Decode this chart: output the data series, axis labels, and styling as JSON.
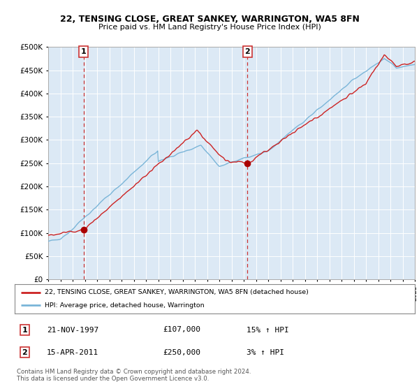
{
  "title": "22, TENSING CLOSE, GREAT SANKEY, WARRINGTON, WA5 8FN",
  "subtitle": "Price paid vs. HM Land Registry's House Price Index (HPI)",
  "legend_line1": "22, TENSING CLOSE, GREAT SANKEY, WARRINGTON, WA5 8FN (detached house)",
  "legend_line2": "HPI: Average price, detached house, Warrington",
  "sale1_date": "21-NOV-1997",
  "sale1_price": 107000,
  "sale1_hpi": "15% ↑ HPI",
  "sale2_date": "15-APR-2011",
  "sale2_price": 250000,
  "sale2_hpi": "3% ↑ HPI",
  "footer": "Contains HM Land Registry data © Crown copyright and database right 2024.\nThis data is licensed under the Open Government Licence v3.0.",
  "ylim": [
    0,
    500000
  ],
  "yticks": [
    0,
    50000,
    100000,
    150000,
    200000,
    250000,
    300000,
    350000,
    400000,
    450000,
    500000
  ],
  "background_color": "#dce9f5",
  "grid_color": "#ffffff",
  "hpi_color": "#7ab5d8",
  "price_color": "#cc2222",
  "sale_marker_color": "#aa0000",
  "vline_color": "#cc3333",
  "sale1_t": 1997.9,
  "sale2_t": 2011.3
}
